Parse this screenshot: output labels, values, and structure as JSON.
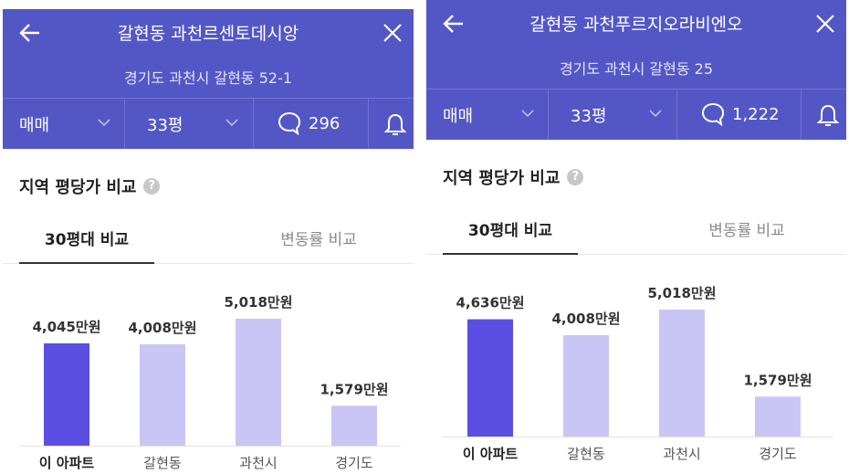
{
  "panels": [
    {
      "header": {
        "title": "갈현동 과천르센토데시앙",
        "address": "경기도 과천시 갈현동 52-1"
      },
      "toolbar": {
        "trade": "매매",
        "size": "33평",
        "comments": "296"
      },
      "section_title": "지역 평당가 비교",
      "tabs": [
        "30평대 비교",
        "변동률 비교"
      ],
      "chart_data": {
        "type": "bar",
        "categories": [
          "이 아파트",
          "갈현동",
          "과천시",
          "경기도"
        ],
        "values": [
          4045,
          4008,
          5018,
          1579
        ],
        "value_labels": [
          "4,045만원",
          "4,008만원",
          "5,018만원",
          "1,579만원"
        ],
        "colors": [
          "#5a4ee3",
          "#c9c6f5",
          "#c9c6f5",
          "#c9c6f5"
        ]
      }
    },
    {
      "header": {
        "title": "갈현동 과천푸르지오라비엔오",
        "address": "경기도 과천시 갈현동 25"
      },
      "toolbar": {
        "trade": "매매",
        "size": "33평",
        "comments": "1,222"
      },
      "section_title": "지역 평당가 비교",
      "tabs": [
        "30평대 비교",
        "변동률 비교"
      ],
      "chart_data": {
        "type": "bar",
        "categories": [
          "이 아파트",
          "갈현동",
          "과천시",
          "경기도"
        ],
        "values": [
          4636,
          4008,
          5018,
          1579
        ],
        "value_labels": [
          "4,636만원",
          "4,008만원",
          "5,018만원",
          "1,579만원"
        ],
        "colors": [
          "#5a4ee3",
          "#c9c6f5",
          "#c9c6f5",
          "#c9c6f5"
        ]
      }
    }
  ]
}
